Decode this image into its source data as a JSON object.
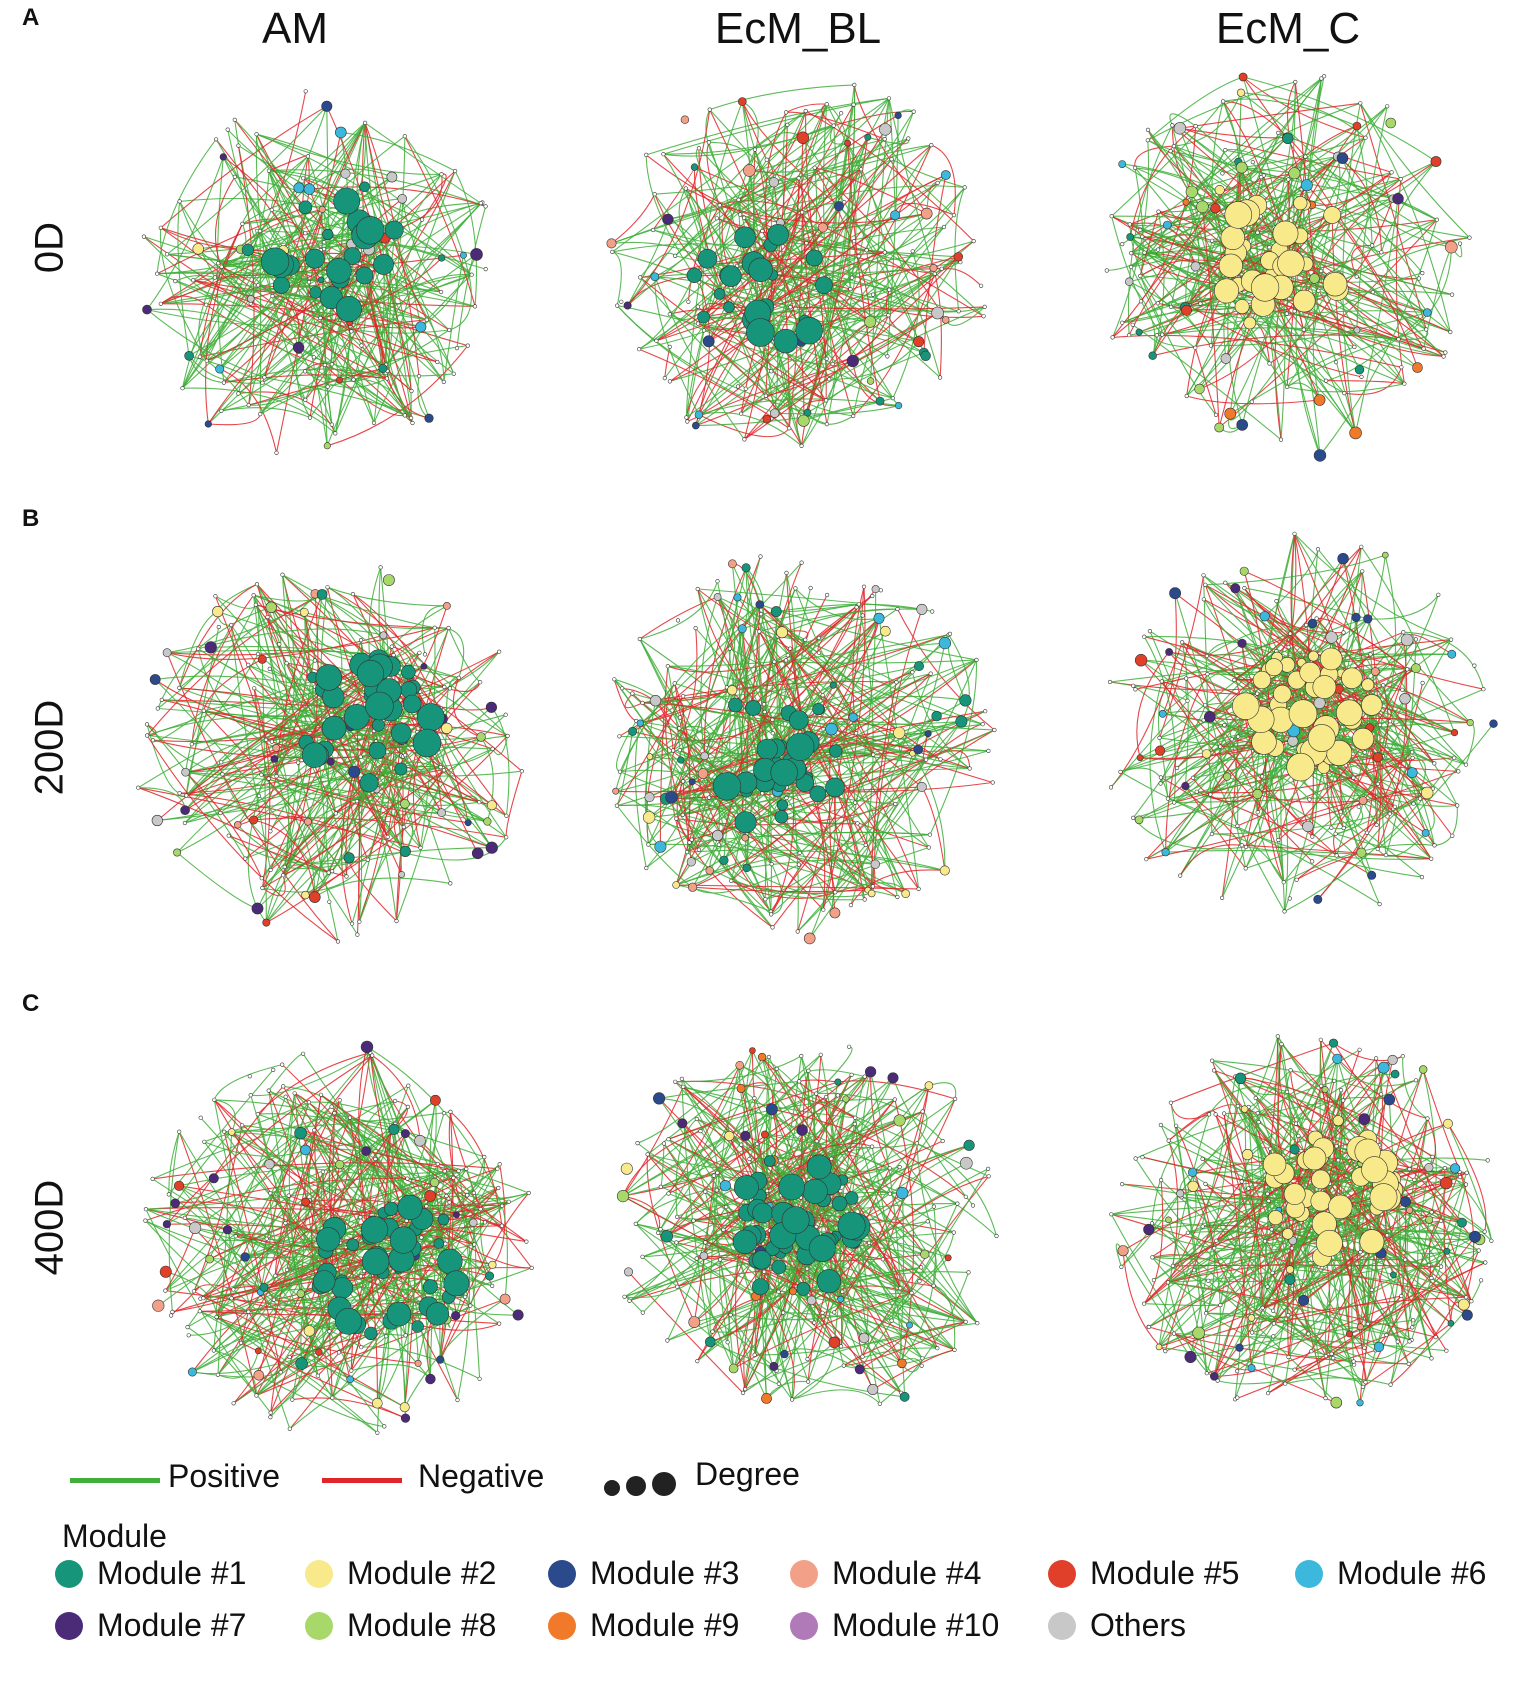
{
  "columns": [
    "AM",
    "EcM_BL",
    "EcM_C"
  ],
  "rows": [
    {
      "panel": "A",
      "label": "0D"
    },
    {
      "panel": "B",
      "label": "200D"
    },
    {
      "panel": "C",
      "label": "400D"
    }
  ],
  "edge_legend": {
    "positive": "Positive",
    "negative": "Negative",
    "degree": "Degree"
  },
  "colors": {
    "positive": "#3fae3a",
    "negative": "#e0262a",
    "degree_dot": "#222222"
  },
  "module_legend": {
    "title": "Module",
    "items": [
      {
        "label": "Module #1",
        "color": "#17957a"
      },
      {
        "label": "Module #2",
        "color": "#f8e98a"
      },
      {
        "label": "Module #3",
        "color": "#2b4a8c"
      },
      {
        "label": "Module #4",
        "color": "#f2a188"
      },
      {
        "label": "Module #5",
        "color": "#e0402a"
      },
      {
        "label": "Module #6",
        "color": "#3cb8dd"
      },
      {
        "label": "Module #7",
        "color": "#4b2a78"
      },
      {
        "label": "Module #8",
        "color": "#a9d86a"
      },
      {
        "label": "Module #9",
        "color": "#f07a2a"
      },
      {
        "label": "Module #10",
        "color": "#b07ab8"
      },
      {
        "label": "Others",
        "color": "#c8c8c8"
      }
    ]
  },
  "networks": [
    {
      "panel": "A",
      "column": "AM",
      "modules": [
        1,
        2,
        3,
        4,
        5,
        6,
        7,
        8,
        11
      ],
      "core": 1
    },
    {
      "panel": "A",
      "column": "EcM_BL",
      "modules": [
        1,
        3,
        4,
        5,
        6,
        7,
        8,
        11
      ],
      "core": 1
    },
    {
      "panel": "A",
      "column": "EcM_C",
      "modules": [
        1,
        2,
        3,
        4,
        5,
        6,
        7,
        8,
        9,
        11
      ],
      "core": 2
    },
    {
      "panel": "B",
      "column": "AM",
      "modules": [
        1,
        2,
        3,
        4,
        5,
        7,
        8,
        11
      ],
      "core": 1
    },
    {
      "panel": "B",
      "column": "EcM_BL",
      "modules": [
        1,
        2,
        3,
        4,
        6,
        11
      ],
      "core": 1
    },
    {
      "panel": "B",
      "column": "EcM_C",
      "modules": [
        1,
        2,
        3,
        4,
        5,
        6,
        7,
        8,
        11
      ],
      "core": 2
    },
    {
      "panel": "C",
      "column": "AM",
      "modules": [
        1,
        2,
        3,
        4,
        5,
        6,
        7,
        8,
        11
      ],
      "core": 1
    },
    {
      "panel": "C",
      "column": "EcM_BL",
      "modules": [
        1,
        2,
        3,
        4,
        5,
        6,
        7,
        8,
        9,
        11
      ],
      "core": 1
    },
    {
      "panel": "C",
      "column": "EcM_C",
      "modules": [
        1,
        2,
        3,
        4,
        5,
        6,
        7,
        8,
        11
      ],
      "core": 2
    }
  ]
}
